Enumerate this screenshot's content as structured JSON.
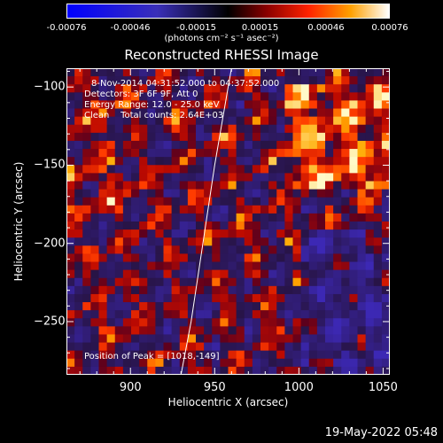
{
  "colorbar": {
    "tick_labels": [
      "-0.00076",
      "-0.00046",
      "-0.00015",
      "0.00015",
      "0.00046",
      "0.00076"
    ],
    "tick_values": [
      -0.00076,
      -0.00046,
      -0.00015,
      0.00015,
      0.00046,
      0.00076
    ],
    "range": [
      -0.00076,
      0.00076
    ],
    "unit_label": "(photons cm⁻² s⁻¹ asec⁻²)"
  },
  "chart_data": {
    "type": "heatmap",
    "title": "Reconstructed RHESSI Image",
    "xlabel": "Heliocentric X (arcsec)",
    "ylabel": "Heliocentric Y (arcsec)",
    "xlim": [
      862,
      1054
    ],
    "ylim": [
      -284,
      -88
    ],
    "x_ticks": [
      900,
      950,
      1000,
      1050
    ],
    "y_ticks": [
      -100,
      -150,
      -200,
      -250
    ],
    "annotations": [
      "8-Nov-2014 04:31:52.000 to 04:37:52.000",
      "Detectors: 3F 6F 9F, Att 0",
      "Energy Range: 12.0 - 25.0 keV",
      "Clean    Total counts: 2.64E+03"
    ],
    "peak_label": "Position of Peak = [1018,-149]",
    "peak": [
      1018,
      -149
    ],
    "limb_line": [
      [
        930,
        -284
      ],
      [
        936,
        -250
      ],
      [
        943,
        -200
      ],
      [
        950,
        -150
      ],
      [
        958,
        -100
      ],
      [
        960,
        -88
      ]
    ]
  },
  "timestamp": "19-May-2022 05:48"
}
